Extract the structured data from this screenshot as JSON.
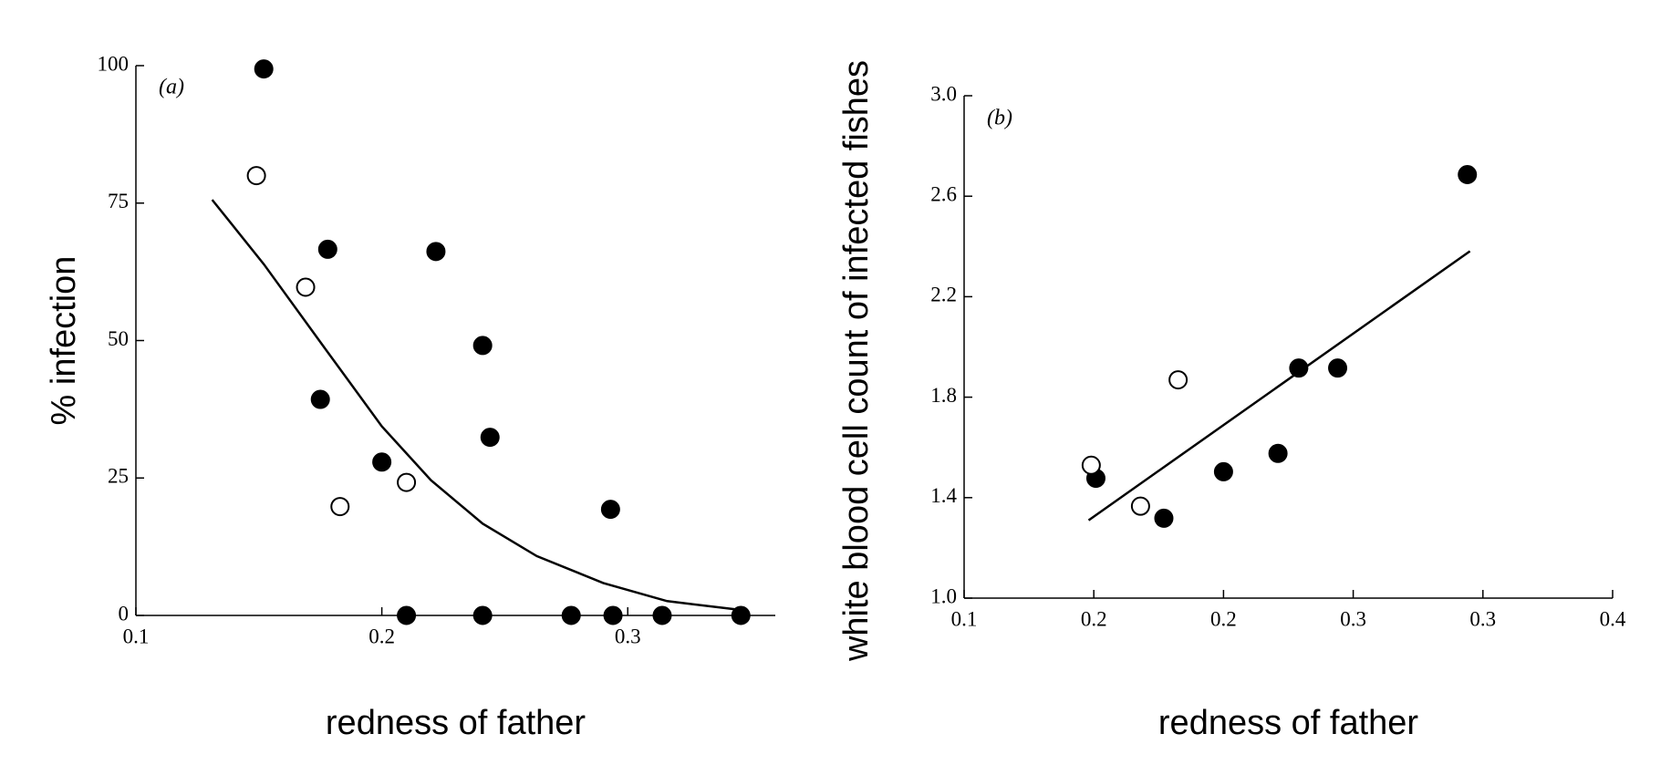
{
  "chart_data": [
    {
      "type": "scatter",
      "annotation": "(a)",
      "x_label": "redness of father",
      "y_label": "% infection",
      "xlim": [
        0.1,
        0.36
      ],
      "ylim": [
        0,
        100
      ],
      "xticks": [
        0.1,
        0.2,
        0.3
      ],
      "yticks": [
        0,
        25,
        50,
        75,
        100
      ],
      "series": [
        {
          "marker": "filled",
          "color": "#000000",
          "x": [
            0.152,
            0.178,
            0.222,
            0.241,
            0.175,
            0.244,
            0.2,
            0.293,
            0.21,
            0.241,
            0.277,
            0.294,
            0.314,
            0.346
          ],
          "values": [
            99.4,
            66.6,
            66.2,
            49.1,
            39.3,
            32.4,
            27.9,
            19.3,
            0,
            0,
            0,
            0,
            0,
            0
          ]
        },
        {
          "marker": "open",
          "color": "#000000",
          "x": [
            0.149,
            0.169,
            0.183,
            0.21
          ],
          "values": [
            80,
            59.7,
            19.8,
            24.2
          ]
        },
        {
          "marker": "line",
          "color": "#000000",
          "x": [
            0.131,
            0.152,
            0.176,
            0.2,
            0.22,
            0.241,
            0.263,
            0.29,
            0.316,
            0.346
          ],
          "values": [
            75.6,
            63.9,
            49.1,
            34.4,
            24.6,
            16.7,
            10.8,
            5.9,
            2.6,
            1
          ]
        }
      ]
    },
    {
      "type": "scatter",
      "annotation": "(b)",
      "x_label": "redness of father",
      "y_label": "white blood cell count of infected fishes",
      "xlim": [
        0.1,
        0.35
      ],
      "ylim": [
        1.0,
        3.0
      ],
      "xticks": [
        0.1,
        {
          "value": 0.15,
          "label": "0.2"
        },
        0.2,
        {
          "value": 0.25,
          "label": "0.3"
        },
        0.3,
        {
          "value": 0.35,
          "label": "0.4"
        }
      ],
      "yticks": [
        {
          "value": 1.0,
          "label": "1.0"
        },
        1.4,
        1.8,
        2.2,
        2.6,
        {
          "value": 3.0,
          "label": "3.0"
        }
      ],
      "series": [
        {
          "marker": "filled",
          "color": "#000000",
          "x": [
            0.1508,
            0.177,
            0.2,
            0.221,
            0.229,
            0.244,
            0.294
          ],
          "values": [
            1.477,
            1.318,
            1.503,
            1.576,
            1.916,
            1.916,
            2.686
          ]
        },
        {
          "marker": "open",
          "color": "#000000",
          "x": [
            0.149,
            0.168,
            0.1825
          ],
          "values": [
            1.529,
            1.366,
            1.869
          ]
        },
        {
          "marker": "line",
          "color": "#000000",
          "x": [
            0.148,
            0.295
          ],
          "values": [
            1.31,
            2.381
          ]
        }
      ]
    }
  ]
}
